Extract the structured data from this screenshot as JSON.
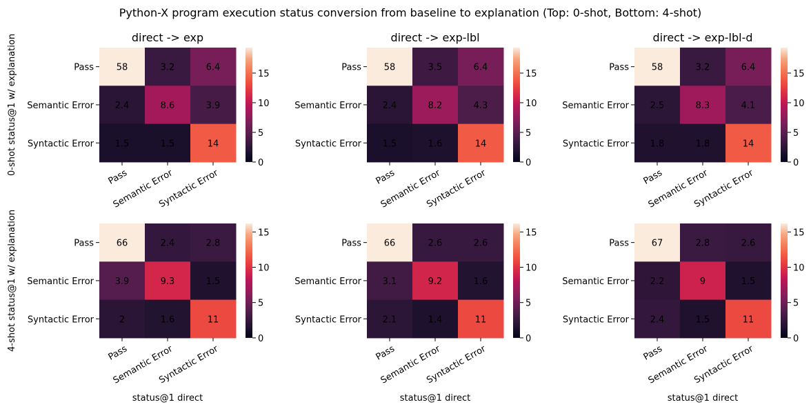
{
  "suptitle": "Python-X program execution status conversion from baseline to explanation (Top: 0-shot, Bottom: 4-shot)",
  "row_ylabels": [
    "0-shot status@1 w/ explanation",
    "4-shot status@1 w/ explanation"
  ],
  "chart_data": [
    {
      "type": "heatmap",
      "title": "direct -> exp",
      "xlabel": "",
      "ylabel": "0-shot status@1 w/ explanation",
      "x_categories": [
        "Pass",
        "Semantic Error",
        "Syntactic Error"
      ],
      "y_categories": [
        "Pass",
        "Semantic Error",
        "Syntactic Error"
      ],
      "values": [
        [
          58,
          3.2,
          6.4
        ],
        [
          2.4,
          8.6,
          3.9
        ],
        [
          1.5,
          1.5,
          14
        ]
      ],
      "colorbar": {
        "vmin": 0,
        "vmax": 19.3,
        "ticks": [
          0,
          5,
          10,
          15
        ]
      },
      "colormap": "rocket"
    },
    {
      "type": "heatmap",
      "title": "direct -> exp-lbl",
      "xlabel": "",
      "ylabel": "",
      "x_categories": [
        "Pass",
        "Semantic Error",
        "Syntactic Error"
      ],
      "y_categories": [
        "Pass",
        "Semantic Error",
        "Syntactic Error"
      ],
      "values": [
        [
          58,
          3.5,
          6.4
        ],
        [
          2.4,
          8.2,
          4.3
        ],
        [
          1.5,
          1.6,
          14
        ]
      ],
      "colorbar": {
        "vmin": 0,
        "vmax": 19.3,
        "ticks": [
          0,
          5,
          10,
          15
        ]
      },
      "colormap": "rocket"
    },
    {
      "type": "heatmap",
      "title": "direct -> exp-lbl-d",
      "xlabel": "",
      "ylabel": "",
      "x_categories": [
        "Pass",
        "Semantic Error",
        "Syntactic Error"
      ],
      "y_categories": [
        "Pass",
        "Semantic Error",
        "Syntactic Error"
      ],
      "values": [
        [
          58,
          3.2,
          6.4
        ],
        [
          2.5,
          8.3,
          4.1
        ],
        [
          1.8,
          1.8,
          14
        ]
      ],
      "colorbar": {
        "vmin": 0,
        "vmax": 19.3,
        "ticks": [
          0,
          5,
          10,
          15
        ]
      },
      "colormap": "rocket"
    },
    {
      "type": "heatmap",
      "title": "",
      "xlabel": "status@1 direct",
      "ylabel": "4-shot status@1 w/ explanation",
      "x_categories": [
        "Pass",
        "Semantic Error",
        "Syntactic Error"
      ],
      "y_categories": [
        "Pass",
        "Semantic Error",
        "Syntactic Error"
      ],
      "values": [
        [
          66,
          2.4,
          2.8
        ],
        [
          3.9,
          9.3,
          1.5
        ],
        [
          2,
          1.6,
          11
        ]
      ],
      "colorbar": {
        "vmin": 0,
        "vmax": 16.2,
        "ticks": [
          0,
          5,
          10,
          15
        ]
      },
      "colormap": "rocket"
    },
    {
      "type": "heatmap",
      "title": "",
      "xlabel": "status@1 direct",
      "ylabel": "",
      "x_categories": [
        "Pass",
        "Semantic Error",
        "Syntactic Error"
      ],
      "y_categories": [
        "Pass",
        "Semantic Error",
        "Syntactic Error"
      ],
      "values": [
        [
          66,
          2.6,
          2.6
        ],
        [
          3.1,
          9.2,
          1.6
        ],
        [
          2.1,
          1.4,
          11
        ]
      ],
      "colorbar": {
        "vmin": 0,
        "vmax": 16.2,
        "ticks": [
          0,
          5,
          10,
          15
        ]
      },
      "colormap": "rocket"
    },
    {
      "type": "heatmap",
      "title": "",
      "xlabel": "status@1 direct",
      "ylabel": "",
      "x_categories": [
        "Pass",
        "Semantic Error",
        "Syntactic Error"
      ],
      "y_categories": [
        "Pass",
        "Semantic Error",
        "Syntactic Error"
      ],
      "values": [
        [
          67,
          2.8,
          2.6
        ],
        [
          2.2,
          9,
          1.5
        ],
        [
          2.4,
          1.5,
          11
        ]
      ],
      "colorbar": {
        "vmin": 0,
        "vmax": 16.2,
        "ticks": [
          0,
          5,
          10,
          15
        ]
      },
      "colormap": "rocket"
    }
  ]
}
